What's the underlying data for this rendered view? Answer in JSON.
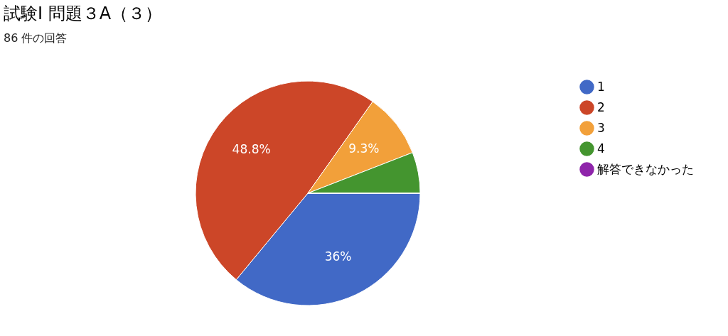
{
  "chart_data": {
    "type": "pie",
    "title": "試験Ⅰ 問題３A（３）",
    "subtitle": "86 件の回答",
    "categories": [
      "1",
      "2",
      "3",
      "4",
      "解答できなかった"
    ],
    "values": [
      36,
      48.8,
      9.3,
      5.9,
      0
    ],
    "colors": [
      "#4169c6",
      "#cc4628",
      "#f2a03a",
      "#44952f",
      "#8e24aa"
    ],
    "value_labels": [
      "36%",
      "48.8%",
      "9.3%",
      null,
      null
    ],
    "legend": "right"
  }
}
